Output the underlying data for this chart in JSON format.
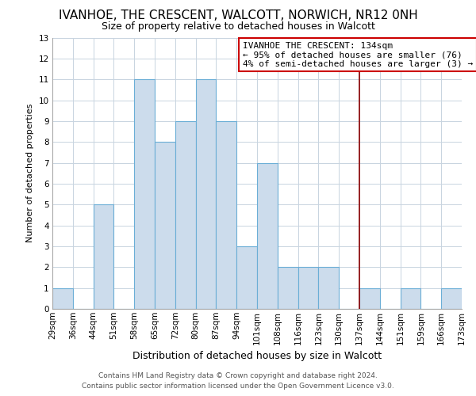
{
  "title": "IVANHOE, THE CRESCENT, WALCOTT, NORWICH, NR12 0NH",
  "subtitle": "Size of property relative to detached houses in Walcott",
  "xlabel": "Distribution of detached houses by size in Walcott",
  "ylabel": "Number of detached properties",
  "bar_labels": [
    "29sqm",
    "36sqm",
    "44sqm",
    "51sqm",
    "58sqm",
    "65sqm",
    "72sqm",
    "80sqm",
    "87sqm",
    "94sqm",
    "101sqm",
    "108sqm",
    "116sqm",
    "123sqm",
    "130sqm",
    "137sqm",
    "144sqm",
    "151sqm",
    "159sqm",
    "166sqm",
    "173sqm"
  ],
  "bar_values": [
    1,
    0,
    5,
    0,
    11,
    8,
    9,
    11,
    9,
    3,
    7,
    2,
    2,
    2,
    0,
    1,
    0,
    1,
    0,
    1
  ],
  "bar_color": "#ccdcec",
  "bar_edge_color": "#6baed6",
  "ylim": [
    0,
    13
  ],
  "yticks": [
    0,
    1,
    2,
    3,
    4,
    5,
    6,
    7,
    8,
    9,
    10,
    11,
    12,
    13
  ],
  "reference_line_color": "#8b0000",
  "annotation_title": "IVANHOE THE CRESCENT: 134sqm",
  "annotation_line1": "← 95% of detached houses are smaller (76)",
  "annotation_line2": "4% of semi-detached houses are larger (3) →",
  "annotation_box_color": "#ffffff",
  "annotation_box_edge_color": "#cc0000",
  "footer_line1": "Contains HM Land Registry data © Crown copyright and database right 2024.",
  "footer_line2": "Contains public sector information licensed under the Open Government Licence v3.0.",
  "background_color": "#ffffff",
  "grid_color": "#c8d4e0",
  "title_fontsize": 11,
  "subtitle_fontsize": 9,
  "xlabel_fontsize": 9,
  "ylabel_fontsize": 8,
  "tick_fontsize": 7.5,
  "annotation_fontsize": 8,
  "footer_fontsize": 6.5
}
